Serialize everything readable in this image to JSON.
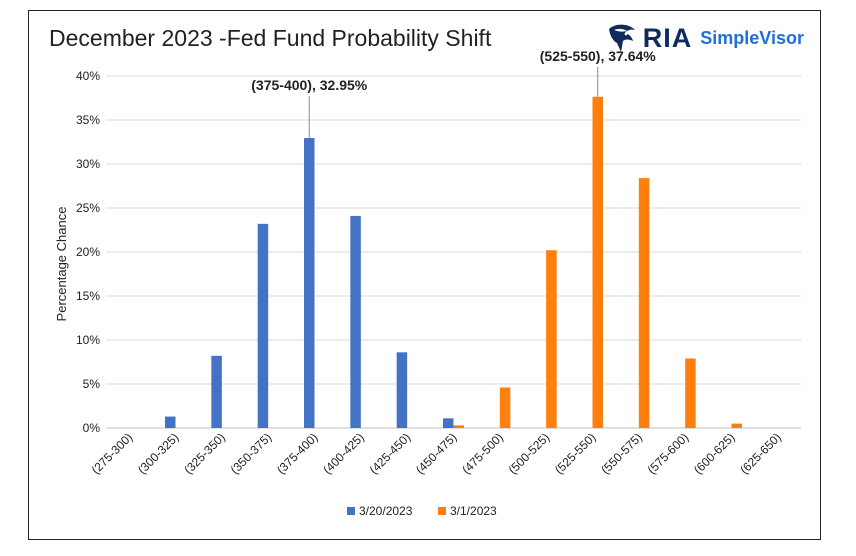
{
  "title": "December 2023 -Fed Fund Probability Shift",
  "logo": {
    "brand": "RIA",
    "product": "SimpleVisor",
    "icon": "eagle-head-icon"
  },
  "colors": {
    "series1": "#4472c4",
    "series2": "#ff7f0e",
    "grid": "#d9d9d9",
    "text": "#222222",
    "brand": "#0f2b5b",
    "brand_accent": "#1e6fd8"
  },
  "chart_data": {
    "type": "bar",
    "title": "December 2023 -Fed Fund Probability Shift",
    "xlabel": "",
    "ylabel": "Percentage Chance",
    "ylim": [
      0,
      40
    ],
    "y_ticks": [
      "0%",
      "5%",
      "10%",
      "15%",
      "20%",
      "25%",
      "30%",
      "35%",
      "40%"
    ],
    "grid": true,
    "legend_position": "bottom",
    "categories": [
      "(275-300)",
      "(300-325)",
      "(325-350)",
      "(350-375)",
      "(375-400)",
      "(400-425)",
      "(425-450)",
      "(450-475)",
      "(475-500)",
      "(500-525)",
      "(525-550)",
      "(550-575)",
      "(575-600)",
      "(600-625)",
      "(625-650)"
    ],
    "series": [
      {
        "name": "3/20/2023",
        "color": "#4472c4",
        "values": [
          0,
          1.3,
          8.2,
          23.2,
          32.95,
          24.1,
          8.6,
          1.1,
          0,
          0,
          0,
          0,
          0,
          0,
          0
        ]
      },
      {
        "name": "3/1/2023",
        "color": "#ff7f0e",
        "values": [
          0,
          0,
          0,
          0,
          0,
          0,
          0,
          0.3,
          4.6,
          20.2,
          37.64,
          28.4,
          7.9,
          0.5,
          0
        ]
      }
    ],
    "annotations": [
      {
        "text": "(375-400), 32.95%",
        "category": "(375-400)",
        "series": 0
      },
      {
        "text": "(525-550), 37.64%",
        "category": "(525-550)",
        "series": 1
      }
    ]
  }
}
